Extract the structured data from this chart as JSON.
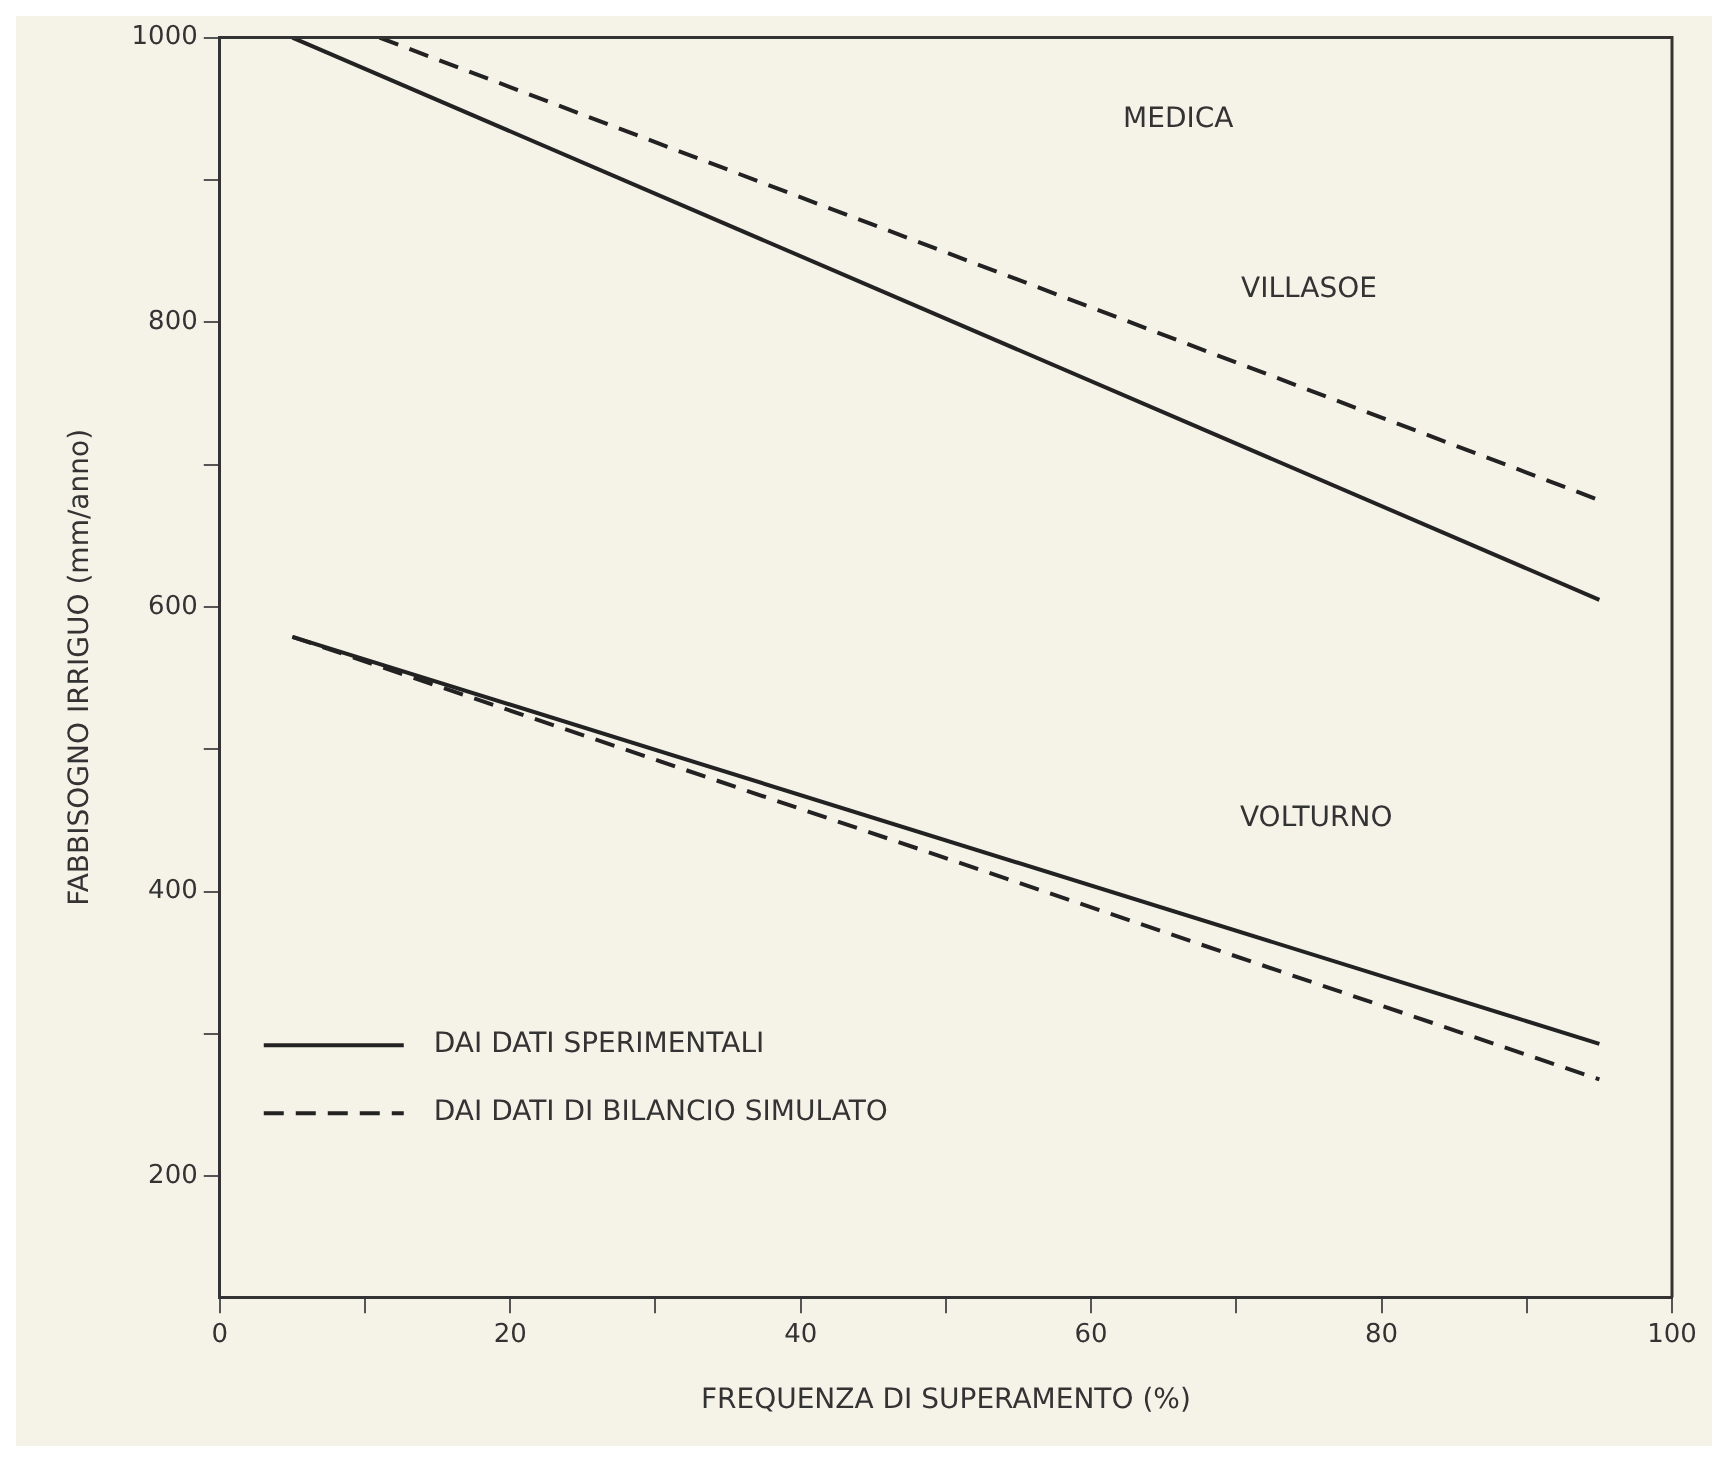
{
  "chart_data": {
    "type": "line",
    "xlabel": "FREQUENZA DI SUPERAMENTO (%)",
    "ylabel": "FABBISOGNO IRRIGUO (mm/anno)",
    "xlim": [
      0,
      100
    ],
    "xticks": [
      0,
      {
        "value": 10,
        "label": null
      },
      20,
      {
        "value": 30,
        "label": null
      },
      40,
      {
        "value": 50,
        "label": null
      },
      60,
      {
        "value": 70,
        "label": null
      },
      80,
      {
        "value": 90,
        "label": null
      },
      100
    ],
    "ylim": [
      115,
      1000
    ],
    "yticks": [
      200,
      {
        "value": 300,
        "label": null
      },
      400,
      {
        "value": 500,
        "label": null
      },
      600,
      {
        "value": 700,
        "label": null
      },
      800,
      {
        "value": 900,
        "label": null
      },
      1000
    ],
    "grid": false,
    "legend": "bottom left",
    "marker": "none",
    "series": [
      {
        "name": "DAI DATI SPERIMENTALI",
        "color": "#222222",
        "line_style": "solid",
        "x": [
          5,
          95
        ],
        "values": [
          1000,
          605
        ]
      },
      {
        "name": "DAI DATI DI BILANCIO SIMULATO",
        "color": "#222222",
        "line_style": "dashed",
        "x": [
          11,
          95
        ],
        "values": [
          1000,
          675
        ]
      },
      {
        "color": "#222222",
        "line_style": "solid",
        "x": [
          5,
          95
        ],
        "values": [
          579,
          293
        ]
      },
      {
        "color": "#222222",
        "line_style": "dashed",
        "x": [
          5,
          95
        ],
        "values": [
          579,
          268
        ]
      }
    ],
    "annotations": [
      "MEDICA",
      "VILLASOE",
      "VOLTURNO"
    ]
  }
}
